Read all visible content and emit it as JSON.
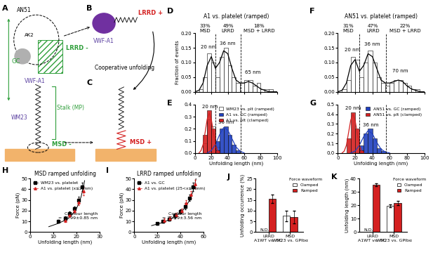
{
  "panel_labels": [
    "A",
    "B",
    "C",
    "D",
    "E",
    "F",
    "G",
    "H",
    "I",
    "J",
    "K"
  ],
  "diagram": {
    "A": {
      "an51": "AN51",
      "ak2": "AK2",
      "vwf": "VWF-A1",
      "lrrd": "LRRD -",
      "gc": "GC",
      "stalk": "Stalk (MP)",
      "wm23": "WM23",
      "msd": "MSD -"
    },
    "B": {
      "vwf": "VWF-A1",
      "lrrd": "LRRD +"
    },
    "C": {
      "coop": "Cooperative unfolding",
      "msd": "MSD +"
    }
  },
  "chart_data": [
    {
      "panel": "D",
      "type": "histogram",
      "title": "A1 vs. platelet (ramped)",
      "ylabel": "Fraction of events",
      "bins": [
        0,
        5,
        10,
        15,
        20,
        25,
        30,
        35,
        40,
        45,
        50,
        55,
        60,
        65,
        70,
        75,
        80,
        85,
        90,
        95,
        100
      ],
      "series": [
        {
          "name": null,
          "color": "#ffffff",
          "values": [
            0,
            0.01,
            0.05,
            0.13,
            0.1,
            0.05,
            0.12,
            0.15,
            0.09,
            0.05,
            0.03,
            0.03,
            0.04,
            0.04,
            0.02,
            0.03,
            0.01,
            0.01,
            0.01,
            0
          ],
          "fit": {
            "x": [
              0,
              5,
              10,
              15,
              20,
              25,
              30,
              35,
              40,
              45,
              50,
              55,
              60,
              65,
              70,
              75,
              80,
              85,
              90,
              95,
              100
            ],
            "y": [
              0,
              0.005,
              0.03,
              0.09,
              0.12,
              0.08,
              0.1,
              0.14,
              0.13,
              0.08,
              0.04,
              0.03,
              0.03,
              0.035,
              0.03,
              0.02,
              0.01,
              0.005,
              0,
              0,
              0
            ]
          }
        }
      ],
      "dividers": [
        25,
        56
      ],
      "regions": [
        "33%\nMSD",
        "49%\nLRRD",
        "18%\nMSD + LRRD"
      ],
      "annotations": [
        {
          "text": "20 nm",
          "x": 17,
          "y": 0.145
        },
        {
          "text": "36 nm",
          "x": 40,
          "y": 0.158
        },
        {
          "text": "65 nm",
          "x": 70,
          "y": 0.06
        }
      ],
      "xlim": [
        0,
        100
      ],
      "ylim": [
        0,
        0.2
      ],
      "xticks": [
        0,
        20,
        40,
        60,
        80,
        100
      ],
      "yticks": [
        {
          "value": 0,
          "label": "0.00"
        },
        {
          "value": 0.05,
          "label": "0.05"
        },
        {
          "value": 0.1,
          "label": "0.10"
        },
        {
          "value": 0.15,
          "label": "0.15"
        },
        {
          "value": 0.2,
          "label": "0.20"
        }
      ],
      "tick_labels": "y"
    },
    {
      "panel": "E",
      "type": "histogram",
      "xlabel": "Unfolding length (nm)",
      "bins": [
        0,
        5,
        10,
        15,
        20,
        25,
        30,
        35,
        40,
        45,
        50,
        55,
        60,
        65,
        70,
        75,
        80,
        85,
        90,
        95,
        100
      ],
      "series": [
        {
          "name": "WM23 vs. plt (ramped)",
          "color": "#ffffff",
          "values": [
            0,
            0,
            0.08,
            0.28,
            0.22,
            0.05,
            0,
            0,
            0,
            0,
            0,
            0,
            0,
            0,
            0,
            0,
            0,
            0,
            0,
            0
          ]
        },
        {
          "name": "A1 vs. GC (ramped)",
          "color": "#2040c0",
          "values": [
            0,
            0,
            0,
            0,
            0,
            0.1,
            0.2,
            0.22,
            0.15,
            0.07,
            0.02,
            0,
            0,
            0,
            0,
            0,
            0,
            0,
            0,
            0
          ],
          "fit": {
            "x": [
              15,
              20,
              25,
              30,
              35,
              40,
              45,
              50,
              55,
              60
            ],
            "y": [
              0,
              0.02,
              0.07,
              0.15,
              0.21,
              0.19,
              0.12,
              0.05,
              0.015,
              0
            ]
          }
        },
        {
          "name": "A1 vs. plt (clamped)",
          "color": "#d42020",
          "values": [
            0,
            0,
            0.15,
            0.35,
            0.2,
            0.02,
            0,
            0,
            0,
            0,
            0,
            0,
            0,
            0,
            0,
            0,
            0,
            0,
            0,
            0
          ],
          "fit": {
            "x": [
              5,
              7.5,
              10,
              12.5,
              15,
              17.5,
              20,
              22.5,
              25,
              27.5,
              30
            ],
            "y": [
              0,
              0.02,
              0.07,
              0.17,
              0.28,
              0.33,
              0.28,
              0.17,
              0.07,
              0.02,
              0
            ]
          }
        }
      ],
      "dividers": [
        25,
        56
      ],
      "annotations": [
        {
          "text": "20 nm",
          "x": 18,
          "y": 0.365
        },
        {
          "text": "36 nm",
          "x": 38,
          "y": 0.235
        }
      ],
      "xlim": [
        0,
        100
      ],
      "ylim": [
        0,
        0.4
      ],
      "xticks": [
        0,
        20,
        40,
        60,
        80,
        100
      ],
      "yticks": [
        {
          "value": 0,
          "label": "0.0"
        },
        {
          "value": 0.1,
          "label": "0.1"
        },
        {
          "value": 0.2,
          "label": "0.2"
        },
        {
          "value": 0.3,
          "label": "0.3"
        },
        {
          "value": 0.4,
          "label": "0.4"
        }
      ],
      "legend": "upper right"
    },
    {
      "panel": "F",
      "type": "histogram",
      "title": "AN51 vs. platelet (ramped)",
      "bins": [
        0,
        5,
        10,
        15,
        20,
        25,
        30,
        35,
        40,
        45,
        50,
        55,
        60,
        65,
        70,
        75,
        80,
        85,
        90,
        95,
        100
      ],
      "series": [
        {
          "name": null,
          "color": "#ffffff",
          "values": [
            0,
            0.01,
            0.04,
            0.12,
            0.11,
            0.05,
            0.1,
            0.14,
            0.1,
            0.05,
            0.03,
            0.02,
            0.03,
            0.04,
            0.04,
            0.03,
            0.02,
            0.01,
            0.01,
            0
          ],
          "fit": {
            "x": [
              0,
              5,
              10,
              15,
              20,
              25,
              30,
              35,
              40,
              45,
              50,
              55,
              60,
              65,
              70,
              75,
              80,
              85,
              90,
              95,
              100
            ],
            "y": [
              0,
              0.005,
              0.03,
              0.09,
              0.11,
              0.07,
              0.09,
              0.13,
              0.12,
              0.08,
              0.04,
              0.03,
              0.03,
              0.035,
              0.04,
              0.035,
              0.02,
              0.01,
              0.005,
              0,
              0
            ]
          }
        }
      ],
      "dividers": [
        25,
        56
      ],
      "regions": [
        "31%\nMSD",
        "47%\nLRRD",
        "22%\nMSD + LRRD"
      ],
      "annotations": [
        {
          "text": "20 nm",
          "x": 17,
          "y": 0.135
        },
        {
          "text": "36 nm",
          "x": 40,
          "y": 0.155
        },
        {
          "text": "70 nm",
          "x": 72,
          "y": 0.065
        }
      ],
      "xlim": [
        0,
        100
      ],
      "ylim": [
        0,
        0.2
      ],
      "xticks": [
        0,
        20,
        40,
        60,
        80,
        100
      ],
      "yticks": [
        {
          "value": 0,
          "label": "0.00"
        },
        {
          "value": 0.05,
          "label": "0.05"
        },
        {
          "value": 0.1,
          "label": "0.10"
        },
        {
          "value": 0.15,
          "label": "0.15"
        },
        {
          "value": 0.2,
          "label": "0.20"
        }
      ],
      "tick_labels": "y"
    },
    {
      "panel": "G",
      "type": "histogram",
      "xlabel": "Unfolding length (nm)",
      "bins": [
        0,
        5,
        10,
        15,
        20,
        25,
        30,
        35,
        40,
        45,
        50,
        55,
        60,
        65,
        70,
        75,
        80,
        85,
        90,
        95,
        100
      ],
      "series": [
        {
          "name": "AN51 vs. GC (ramped)",
          "color": "#2040c0",
          "values": [
            0,
            0,
            0,
            0,
            0,
            0.08,
            0.2,
            0.25,
            0.15,
            0.05,
            0.02,
            0,
            0,
            0,
            0,
            0,
            0,
            0,
            0,
            0
          ],
          "fit": {
            "x": [
              15,
              20,
              25,
              30,
              35,
              40,
              45,
              50,
              55,
              60
            ],
            "y": [
              0,
              0.02,
              0.08,
              0.17,
              0.23,
              0.2,
              0.11,
              0.04,
              0.01,
              0
            ]
          }
        },
        {
          "name": "AN51 vs. plt (clamped)",
          "color": "#d42020",
          "values": [
            0,
            0,
            0.15,
            0.42,
            0.25,
            0.03,
            0,
            0,
            0,
            0,
            0,
            0,
            0,
            0,
            0,
            0,
            0,
            0,
            0,
            0
          ],
          "fit": {
            "x": [
              5,
              7.5,
              10,
              12.5,
              15,
              17.5,
              20,
              22.5,
              25,
              27.5,
              30
            ],
            "y": [
              0,
              0.02,
              0.08,
              0.21,
              0.34,
              0.4,
              0.34,
              0.21,
              0.08,
              0.02,
              0
            ]
          }
        }
      ],
      "dividers": [
        25,
        56
      ],
      "annotations": [
        {
          "text": "20 nm",
          "x": 18,
          "y": 0.44
        },
        {
          "text": "36 nm",
          "x": 38,
          "y": 0.27
        }
      ],
      "xlim": [
        0,
        100
      ],
      "ylim": [
        0,
        0.5
      ],
      "xticks": [
        0,
        20,
        40,
        60,
        80,
        100
      ],
      "yticks": [
        {
          "value": 0,
          "label": "0.0"
        },
        {
          "value": 0.1,
          "label": "0.1"
        },
        {
          "value": 0.2,
          "label": "0.2"
        },
        {
          "value": 0.3,
          "label": "0.3"
        },
        {
          "value": 0.4,
          "label": "0.4"
        },
        {
          "value": 0.5,
          "label": "0.5"
        }
      ],
      "legend": "upper right"
    },
    {
      "panel": "H",
      "type": "scatter",
      "title": "MSD ramped unfolding",
      "xlabel": "Unfolding length (nm)",
      "ylabel": "Force (pN)",
      "series": [
        {
          "name": "WM23 vs. platelet",
          "color": "#000000",
          "marker": "s",
          "x": [
            12,
            15,
            17,
            19,
            21,
            22.5
          ],
          "values": [
            10,
            13,
            17,
            22,
            30,
            42
          ],
          "errors": [
            1.5,
            1.5,
            2,
            2,
            3,
            4
          ]
        },
        {
          "name": "A1 vs. platelet (x≤25nm)",
          "color": "#d42020",
          "marker": "^",
          "x": [
            15,
            17,
            19,
            21,
            23
          ],
          "values": [
            11,
            16,
            20,
            28,
            38
          ],
          "errors": [
            1.5,
            2,
            2,
            3,
            4
          ]
        }
      ],
      "fit": {
        "x": [
          8,
          12,
          16,
          18,
          20,
          21,
          22,
          23,
          23.5
        ],
        "y": [
          5,
          8,
          12,
          16,
          22,
          27,
          33,
          42,
          48
        ]
      },
      "annotations": [
        {
          "text": "Contour length\n= 25.99±0.85 nm"
        }
      ],
      "xlim": [
        0,
        30
      ],
      "ylim": [
        0,
        50
      ],
      "xticks": [
        0,
        10,
        20,
        30
      ],
      "yticks": [
        0,
        10,
        20,
        30,
        40,
        50
      ],
      "legend": "upper left"
    },
    {
      "panel": "I",
      "type": "scatter",
      "title": "LRRD ramped unfolding",
      "xlabel": "Unfolding length (nm)",
      "ylabel": "Force (pN)",
      "series": [
        {
          "name": "A1 vs. GC",
          "color": "#000000",
          "marker": "s",
          "x": [
            20,
            25,
            30,
            35,
            40,
            44,
            48,
            51
          ],
          "values": [
            8,
            10,
            12,
            15,
            19,
            24,
            32,
            42
          ],
          "errors": [
            1,
            1.5,
            1.5,
            2,
            2,
            3,
            3,
            4
          ]
        },
        {
          "name": "A1 vs. platelet (25<x≤56nm)",
          "color": "#d42020",
          "marker": "^",
          "x": [
            26,
            31,
            36,
            41,
            45,
            49,
            53
          ],
          "values": [
            11,
            13,
            16,
            20,
            27,
            35,
            45
          ],
          "errors": [
            1.5,
            1.5,
            2,
            2,
            3,
            3,
            4
          ]
        }
      ],
      "fit": {
        "x": [
          15,
          25,
          35,
          42,
          47,
          50,
          52,
          53.5
        ],
        "y": [
          6,
          9,
          14,
          20,
          28,
          35,
          42,
          50
        ]
      },
      "annotations": [
        {
          "text": "Contour length\n= 70.29±3.56 nm"
        }
      ],
      "xlim": [
        0,
        60
      ],
      "ylim": [
        0,
        50
      ],
      "xticks": [
        0,
        20,
        40,
        60
      ],
      "yticks": [
        0,
        10,
        20,
        30,
        40,
        50
      ],
      "legend": "upper left"
    },
    {
      "panel": "J",
      "type": "bar",
      "ylabel": "Unfolding occurrence (%)",
      "categories": [
        "LRRD\nA1WT vs. GC",
        "MSD\nWM23 vs. GPIbα"
      ],
      "series": [
        {
          "name": "Clamped",
          "color": "#ffffff",
          "values": [
            null,
            7.5
          ],
          "errors": [
            null,
            2.5
          ]
        },
        {
          "name": "Ramped",
          "color": "#d42020",
          "values": [
            15.5,
            7
          ],
          "errors": [
            2,
            3
          ]
        }
      ],
      "legend_title": "Force waveform",
      "annotations": [
        {
          "text": "N.D.",
          "category": 0,
          "series": "Clamped"
        }
      ],
      "ylim": [
        0,
        25
      ],
      "yticks": [
        0,
        5,
        10,
        15,
        20,
        25
      ],
      "legend": "upper right"
    },
    {
      "panel": "K",
      "type": "bar",
      "ylabel": "Unfolding length (nm)",
      "categories": [
        "LRRD\nA1WT vs. GC",
        "MSD\nWM23 vs. GPIbα"
      ],
      "series": [
        {
          "name": "Clamped",
          "color": "#ffffff",
          "values": [
            null,
            19.5
          ],
          "errors": [
            null,
            1
          ]
        },
        {
          "name": "Ramped",
          "color": "#d42020",
          "values": [
            35.5,
            21.5
          ],
          "errors": [
            1,
            1.5
          ]
        }
      ],
      "legend_title": "Force waveform",
      "annotations": [
        {
          "text": "N.D.",
          "category": 0,
          "series": "Clamped"
        }
      ],
      "ylim": [
        0,
        40
      ],
      "yticks": [
        0,
        10,
        20,
        30,
        40
      ],
      "legend": "upper right"
    }
  ]
}
